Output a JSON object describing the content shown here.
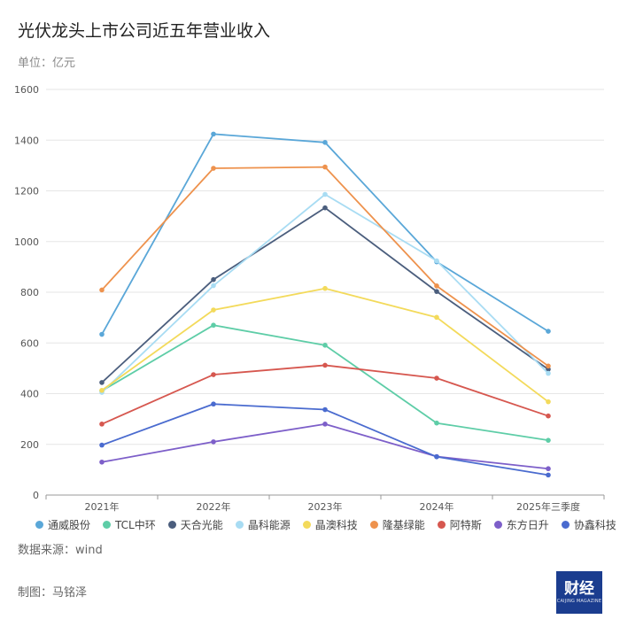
{
  "chart_data": {
    "type": "line",
    "title": "光伏龙头上市公司近五年营业收入",
    "unit_label": "单位：亿元",
    "categories": [
      "2021年",
      "2022年",
      "2023年",
      "2024年",
      "2025年三季度"
    ],
    "ylim": [
      0,
      1600
    ],
    "yticks": [
      0,
      200,
      400,
      600,
      800,
      1000,
      1200,
      1400,
      1600
    ],
    "grid": true,
    "legend_position": "bottom",
    "series": [
      {
        "name": "通威股份",
        "color": "#5aa7d8",
        "values": [
          634,
          1424,
          1391,
          920,
          646
        ]
      },
      {
        "name": "TCL中环",
        "color": "#5ecda7",
        "values": [
          411,
          670,
          591,
          284,
          216
        ]
      },
      {
        "name": "天合光能",
        "color": "#4b5e7d",
        "values": [
          444,
          850,
          1133,
          803,
          496
        ]
      },
      {
        "name": "晶科能源",
        "color": "#a8dcf3",
        "values": [
          405,
          826,
          1186,
          924,
          480
        ]
      },
      {
        "name": "晶澳科技",
        "color": "#f3da5b",
        "values": [
          413,
          730,
          815,
          701,
          368
        ]
      },
      {
        "name": "隆基绿能",
        "color": "#ee924d",
        "values": [
          809,
          1289,
          1294,
          825,
          509
        ]
      },
      {
        "name": "阿特斯",
        "color": "#d6574f",
        "values": [
          280,
          475,
          512,
          461,
          312
        ]
      },
      {
        "name": "东方日升",
        "color": "#7d5fc9",
        "values": [
          130,
          210,
          280,
          152,
          104
        ]
      },
      {
        "name": "协鑫科技",
        "color": "#4a6bcf",
        "values": [
          197,
          359,
          337,
          151,
          79
        ]
      }
    ]
  },
  "footer": {
    "source": "数据来源：wind",
    "credit": "制图：马铭泽",
    "logo_text": "财经",
    "logo_sub": "CAIJING MAGAZINE"
  }
}
